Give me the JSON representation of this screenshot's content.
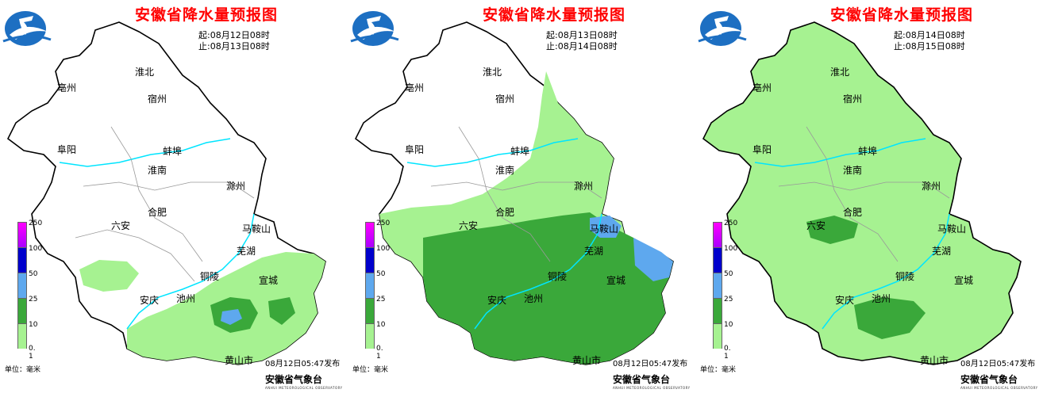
{
  "title": "安徽省降水量预报图",
  "panels": [
    {
      "start": "起:08月12日08时",
      "end": "止:08月13日08时",
      "issued": "08月12日05:47发布"
    },
    {
      "start": "起:08月13日08时",
      "end": "止:08月14日08时",
      "issued": "08月12日05:47发布"
    },
    {
      "start": "起:08月14日08时",
      "end": "止:08月15日08时",
      "issued": "08月12日05:47发布"
    }
  ],
  "unit": "单位：毫米",
  "office": "安徽省气象台",
  "office_en": "ANHUI METEOROLOGICAL OBSERVATORY",
  "legend": {
    "ticks": [
      "250",
      "100",
      "50",
      "25",
      "10",
      "0. 1"
    ],
    "colors": [
      "#ff00ff",
      "#0000cc",
      "#5ea8ee",
      "#3aa83a",
      "#a6f291"
    ]
  },
  "cities": [
    "亳州",
    "淮北",
    "宿州",
    "阜阳",
    "蚌埠",
    "淮南",
    "滁州",
    "合肥",
    "六安",
    "马鞍山",
    "芜湖",
    "铜陵",
    "宣城",
    "安庆",
    "池州",
    "黄山市"
  ],
  "colors": {
    "title": "#ff0000",
    "river": "#00e5ff",
    "light_rain": "#a6f291",
    "moderate_rain": "#3aa83a",
    "heavy_rain": "#5ea8ee"
  }
}
